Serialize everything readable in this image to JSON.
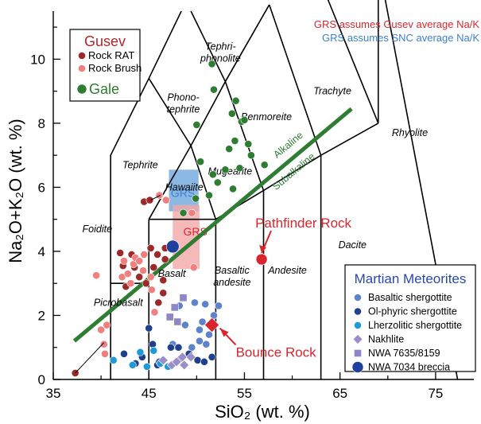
{
  "chart_data": {
    "type": "scatter",
    "xlabel": "SiO₂ (wt. %)",
    "ylabel": "Na₂O+K₂O (wt. %)",
    "xlim": [
      35,
      79
    ],
    "ylim": [
      0,
      11.5
    ],
    "x_ticks": [
      "35",
      "45",
      "55",
      "65",
      "75"
    ],
    "y_ticks": [
      "0",
      "2",
      "4",
      "6",
      "8",
      "10"
    ],
    "notes": {
      "gusev_note": "GRS assumes Gusev average Na/K",
      "snc_note": "GRS assumes SNC average Na/K",
      "gusev_note_color": "#d9262e",
      "snc_note_color": "#3d7fd0"
    },
    "fields": [
      {
        "name": "Tephri-\nphonolite",
        "x": 52.5,
        "y": 10.3
      },
      {
        "name": "Phono-\ntephrite",
        "x": 48.6,
        "y": 8.7
      },
      {
        "name": "Trachyte",
        "x": 64.2,
        "y": 8.9
      },
      {
        "name": "Benmoreite",
        "x": 57.3,
        "y": 8.1
      },
      {
        "name": "Rhyolite",
        "x": 72.3,
        "y": 7.6
      },
      {
        "name": "Tephrite",
        "x": 44.1,
        "y": 6.6
      },
      {
        "name": "Mugearite",
        "x": 53.5,
        "y": 6.4
      },
      {
        "name": "Hawaiite",
        "x": 48.7,
        "y": 5.9
      },
      {
        "name": "Foidite",
        "x": 39.6,
        "y": 4.6
      },
      {
        "name": "Dacite",
        "x": 66.3,
        "y": 4.1
      },
      {
        "name": "Basalt",
        "x": 47.4,
        "y": 3.2
      },
      {
        "name": "Basaltic\nandesite",
        "x": 53.7,
        "y": 3.3
      },
      {
        "name": "Andesite",
        "x": 59.5,
        "y": 3.3
      },
      {
        "name": "Picrobasalt",
        "x": 41.8,
        "y": 2.3
      }
    ],
    "boundary_labels": [
      {
        "name": "Alkaline",
        "color": "#2e7d32"
      },
      {
        "name": "Subalkaline",
        "color": "#2e7d32"
      }
    ],
    "grs_boxes": [
      {
        "label": "GRS",
        "x": [
          47.1,
          50.2
        ],
        "y": [
          5.25,
          6.55
        ],
        "color": "#6ea7dd",
        "text_color": "#3d7fd0"
      },
      {
        "label": "GRS",
        "x": [
          47.5,
          50.3
        ],
        "y": [
          3.45,
          5.45
        ],
        "color": "#f2a7a7",
        "text_color": "#d9262e"
      }
    ],
    "series": [
      {
        "name": "Rock RAT",
        "group": "Gusev",
        "color": "#9c2a2a",
        "marker": "circle",
        "points": [
          [
            37.3,
            0.2
          ],
          [
            42.0,
            3.95
          ],
          [
            42.3,
            3.55
          ],
          [
            42.6,
            2.9
          ],
          [
            43.2,
            3.9
          ],
          [
            43.5,
            3.5
          ],
          [
            44.0,
            3.2
          ],
          [
            44.7,
            3.0
          ],
          [
            45.2,
            4.1
          ],
          [
            45.5,
            3.5
          ],
          [
            45.9,
            3.9
          ],
          [
            46.5,
            3.1
          ],
          [
            46.5,
            2.7
          ],
          [
            46.0,
            2.4
          ],
          [
            46.7,
            4.1
          ],
          [
            46.7,
            3.75
          ],
          [
            44.5,
            5.55
          ],
          [
            45.1,
            5.6
          ]
        ]
      },
      {
        "name": "Rock Brush",
        "group": "Gusev",
        "color": "#f08080",
        "marker": "circle",
        "points": [
          [
            39.5,
            3.25
          ],
          [
            40.0,
            1.55
          ],
          [
            40.3,
            1.1
          ],
          [
            40.6,
            1.7
          ],
          [
            40.4,
            0.8
          ],
          [
            42.2,
            3.2
          ],
          [
            42.4,
            3.7
          ],
          [
            42.8,
            3.3
          ],
          [
            43.1,
            3.0
          ],
          [
            43.4,
            3.6
          ],
          [
            43.6,
            3.8
          ],
          [
            44.0,
            3.7
          ],
          [
            44.4,
            3.4
          ],
          [
            44.5,
            3.9
          ],
          [
            45.2,
            3.2
          ],
          [
            45.3,
            2.8
          ],
          [
            45.6,
            2.1
          ],
          [
            46.1,
            5.75
          ],
          [
            46.8,
            5.6
          ],
          [
            49.5,
            5.2
          ],
          [
            49.7,
            3.5
          ]
        ]
      },
      {
        "name": "Gale",
        "group": "Gale",
        "color": "#2e7d32",
        "marker": "circle",
        "points": [
          [
            51.6,
            9.85
          ],
          [
            51.8,
            9.05
          ],
          [
            54.1,
            8.7
          ],
          [
            53.7,
            8.3
          ],
          [
            50.0,
            7.95
          ],
          [
            54.7,
            8.05
          ],
          [
            55.0,
            8.1
          ],
          [
            55.4,
            7.35
          ],
          [
            55.7,
            7.0
          ],
          [
            54.0,
            7.45
          ],
          [
            53.4,
            7.2
          ],
          [
            54.5,
            6.6
          ],
          [
            53.0,
            6.55
          ],
          [
            52.2,
            6.15
          ],
          [
            57.1,
            6.7
          ],
          [
            50.4,
            6.8
          ],
          [
            51.7,
            6.4
          ],
          [
            53.8,
            5.95
          ],
          [
            51.3,
            5.75
          ],
          [
            48.6,
            5.2
          ],
          [
            49.9,
            5.65
          ]
        ]
      },
      {
        "name": "Basaltic shergottite",
        "group": "Martian Meteorites",
        "color": "#5f82cc",
        "marker": "circle",
        "points": [
          [
            48.2,
            2.3
          ],
          [
            49.8,
            2.4
          ],
          [
            50.9,
            2.35
          ],
          [
            52.3,
            2.3
          ],
          [
            48.8,
            1.7
          ],
          [
            50.6,
            1.8
          ],
          [
            51.3,
            1.4
          ],
          [
            50.3,
            1.2
          ],
          [
            51.0,
            1.1
          ],
          [
            48.0,
            1.0
          ],
          [
            49.5,
            1.0
          ],
          [
            47.5,
            1.1
          ],
          [
            51.8,
            2.0
          ],
          [
            50.3,
            1.55
          ]
        ]
      },
      {
        "name": "Ol-phyric shergottite",
        "group": "Martian Meteorites",
        "color": "#1f3f8f",
        "marker": "circle",
        "points": [
          [
            42.4,
            0.8
          ],
          [
            43.6,
            0.5
          ],
          [
            44.3,
            0.7
          ],
          [
            45.4,
            1.1
          ],
          [
            45.9,
            0.45
          ],
          [
            46.1,
            0.55
          ],
          [
            46.5,
            0.6
          ],
          [
            47.3,
            1.0
          ],
          [
            48.3,
            0.65
          ],
          [
            49.2,
            0.8
          ],
          [
            50.1,
            0.6
          ],
          [
            50.8,
            0.55
          ],
          [
            51.6,
            0.7
          ],
          [
            48.1,
            1.0
          ],
          [
            45.0,
            1.6
          ]
        ]
      },
      {
        "name": "Lherzolitic shergottite",
        "group": "Martian Meteorites",
        "color": "#1e9ad6",
        "marker": "circle",
        "points": [
          [
            41.3,
            0.6
          ],
          [
            43.3,
            0.45
          ],
          [
            44.1,
            0.85
          ],
          [
            44.8,
            0.4
          ],
          [
            46.2,
            0.5
          ],
          [
            47.0,
            0.4
          ],
          [
            45.5,
            0.9
          ]
        ]
      },
      {
        "name": "Nakhlite",
        "group": "Martian Meteorites",
        "color": "#9b8dc8",
        "marker": "diamond",
        "points": [
          [
            47.4,
            0.45
          ],
          [
            47.9,
            0.55
          ],
          [
            48.5,
            0.7
          ],
          [
            49.4,
            0.7
          ],
          [
            48.7,
            0.45
          ],
          [
            46.5,
            0.6
          ]
        ]
      },
      {
        "name": "NWA 7635/8159",
        "group": "Martian Meteorites",
        "color": "#8d87c8",
        "marker": "square",
        "points": [
          [
            47.7,
            2.25
          ],
          [
            48.6,
            2.55
          ],
          [
            47.2,
            1.95
          ],
          [
            48.0,
            1.8
          ]
        ]
      },
      {
        "name": "NWA 7034 breccia",
        "group": "Martian Meteorites",
        "color": "#1f3f9f",
        "marker": "circle-large",
        "points": [
          [
            47.5,
            4.15
          ]
        ]
      }
    ],
    "missions": [
      {
        "name": "Pathfinder Rock",
        "x": 56.8,
        "y": 3.75,
        "color": "#d9262e",
        "marker": "circle"
      },
      {
        "name": "Bounce Rock",
        "x": 51.6,
        "y": 1.7,
        "color": "#d9262e",
        "marker": "diamond"
      }
    ],
    "legends": {
      "gusev": {
        "title": "Gusev",
        "title_color": "#b3262e",
        "items": [
          "Rock RAT",
          "Rock Brush"
        ]
      },
      "gale": {
        "label": "Gale",
        "color": "#2e7d32"
      },
      "meteorites": {
        "title": "Martian Meteorites",
        "title_color": "#2a49a8",
        "items": [
          "Basaltic shergottite",
          "Ol-phyric shergottite",
          "Lherzolitic shergottite",
          "Nakhlite",
          "NWA 7635/8159",
          "NWA 7034 breccia"
        ]
      }
    }
  }
}
